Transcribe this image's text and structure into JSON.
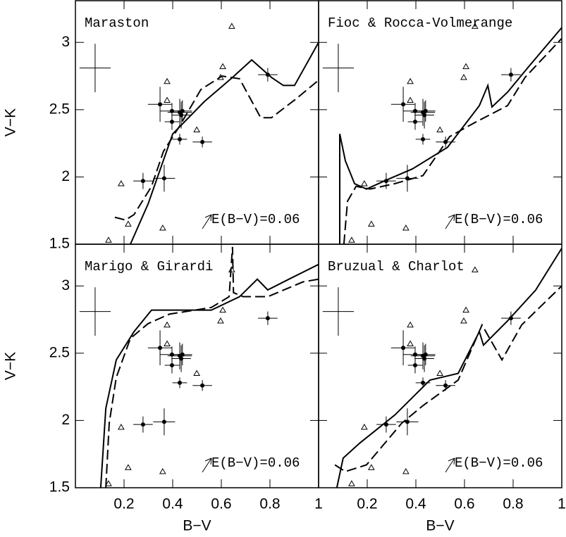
{
  "chart_data": [
    {
      "type": "scatter",
      "title": "Maraston",
      "ylabel": "V−K",
      "xlim": [
        0,
        1
      ],
      "ylim": [
        1.5,
        3.31
      ],
      "yticks": [
        1.5,
        2,
        2.5,
        3
      ],
      "annotation": "E(B−V)=0.06",
      "series": [
        {
          "style": "solid",
          "color": "#000000",
          "x": [
            0.226,
            0.299,
            0.4,
            0.53,
            0.646,
            0.725,
            0.806,
            0.855,
            0.901,
            1.0
          ],
          "values": [
            1.5,
            1.8,
            2.32,
            2.56,
            2.74,
            2.87,
            2.74,
            2.68,
            2.68,
            3.0
          ]
        },
        {
          "style": "dashed",
          "color": "#000000",
          "x": [
            0.162,
            0.206,
            0.241,
            0.313,
            0.362,
            0.429,
            0.516,
            0.603,
            0.675,
            0.762,
            0.806,
            0.907,
            0.994
          ],
          "values": [
            1.7,
            1.68,
            1.72,
            1.93,
            2.19,
            2.38,
            2.65,
            2.75,
            2.73,
            2.44,
            2.44,
            2.58,
            2.71
          ]
        },
        {
          "marker": "circle",
          "color": "#000000",
          "x": [
            0.278,
            0.365,
            0.348,
            0.397,
            0.397,
            0.429,
            0.44,
            0.435,
            0.429,
            0.522,
            0.791
          ],
          "values": [
            1.97,
            1.99,
            2.54,
            2.49,
            2.41,
            2.48,
            2.49,
            2.46,
            2.28,
            2.26,
            2.76
          ],
          "xerr": [
            0.04,
            0.045,
            0.05,
            0.05,
            0.03,
            0.05,
            0.04,
            0.04,
            0.03,
            0.04,
            0.04
          ],
          "yerr": [
            0.06,
            0.1,
            0.13,
            0.06,
            0.06,
            0.1,
            0.08,
            0.1,
            0.04,
            0.04,
            0.05
          ]
        },
        {
          "marker": "triangle",
          "color": "#000000",
          "x": [
            0.136,
            0.188,
            0.217,
            0.359,
            0.377,
            0.377,
            0.499,
            0.597,
            0.606,
            0.643
          ],
          "values": [
            1.53,
            1.95,
            1.65,
            1.62,
            2.71,
            2.57,
            2.35,
            2.74,
            2.82,
            3.12
          ]
        },
        {
          "marker": "none",
          "color": "#000000",
          "x": [
            0.081
          ],
          "values": [
            2.81
          ],
          "xerr": [
            0.064
          ],
          "yerr": [
            0.18
          ]
        }
      ]
    },
    {
      "type": "scatter",
      "title": "Fioc & Rocca-Volmerange",
      "xlim": [
        0,
        1
      ],
      "ylim": [
        1.5,
        3.31
      ],
      "annotation": "E(B−V)=0.06",
      "series": [
        {
          "style": "solid",
          "color": "#000000",
          "x": [
            0.087,
            0.087,
            0.11,
            0.148,
            0.197,
            0.27,
            0.386,
            0.53,
            0.661,
            0.696,
            0.713,
            0.777,
            0.864,
            1.0
          ],
          "values": [
            1.5,
            2.32,
            2.12,
            1.95,
            1.91,
            1.97,
            2.06,
            2.22,
            2.53,
            2.68,
            2.52,
            2.63,
            2.82,
            3.11
          ]
        },
        {
          "style": "dashed",
          "color": "#000000",
          "x": [
            0.104,
            0.119,
            0.154,
            0.212,
            0.313,
            0.429,
            0.539,
            0.638,
            0.777,
            0.849,
            1.0
          ],
          "values": [
            1.5,
            1.82,
            1.93,
            1.91,
            1.95,
            2.01,
            2.3,
            2.4,
            2.53,
            2.74,
            3.03
          ]
        },
        {
          "marker": "circle",
          "color": "#000000",
          "x": [
            0.278,
            0.365,
            0.348,
            0.397,
            0.397,
            0.429,
            0.44,
            0.435,
            0.429,
            0.522,
            0.791
          ],
          "values": [
            1.97,
            1.99,
            2.54,
            2.49,
            2.41,
            2.48,
            2.49,
            2.46,
            2.28,
            2.26,
            2.76
          ],
          "xerr": [
            0.04,
            0.045,
            0.05,
            0.05,
            0.03,
            0.05,
            0.04,
            0.04,
            0.03,
            0.04,
            0.04
          ],
          "yerr": [
            0.06,
            0.1,
            0.13,
            0.06,
            0.06,
            0.1,
            0.08,
            0.1,
            0.04,
            0.04,
            0.05
          ]
        },
        {
          "marker": "triangle",
          "color": "#000000",
          "x": [
            0.136,
            0.188,
            0.217,
            0.359,
            0.377,
            0.377,
            0.499,
            0.597,
            0.606,
            0.643
          ],
          "values": [
            1.53,
            1.95,
            1.65,
            1.62,
            2.71,
            2.57,
            2.35,
            2.74,
            2.82,
            3.12
          ]
        },
        {
          "marker": "none",
          "color": "#000000",
          "x": [
            0.081
          ],
          "values": [
            2.81
          ],
          "xerr": [
            0.064
          ],
          "yerr": [
            0.18
          ]
        }
      ]
    },
    {
      "type": "scatter",
      "title": "Marigo & Girardi",
      "xlabel": "B−V",
      "ylabel": "V−K",
      "xlim": [
        0,
        1
      ],
      "ylim": [
        1.5,
        3.31
      ],
      "xticks": [
        0.2,
        0.4,
        0.6,
        0.8,
        1
      ],
      "yticks": [
        1.5,
        2,
        2.5,
        3
      ],
      "annotation": "E(B−V)=0.06",
      "series": [
        {
          "style": "solid",
          "color": "#000000",
          "x": [
            0.104,
            0.125,
            0.168,
            0.241,
            0.313,
            0.559,
            0.675,
            0.748,
            0.791,
            0.878,
            1.0
          ],
          "values": [
            1.5,
            2.09,
            2.45,
            2.66,
            2.82,
            2.82,
            2.92,
            3.05,
            2.97,
            3.05,
            3.16
          ]
        },
        {
          "style": "dashed",
          "color": "#000000",
          "x": [
            0.125,
            0.139,
            0.168,
            0.226,
            0.299,
            0.386,
            0.559,
            0.632,
            0.646,
            0.65,
            0.69,
            0.791,
            0.936,
            1.0
          ],
          "values": [
            1.5,
            1.98,
            2.32,
            2.61,
            2.72,
            2.79,
            2.84,
            2.92,
            3.29,
            2.95,
            2.92,
            2.92,
            3.03,
            3.05
          ]
        },
        {
          "marker": "circle",
          "color": "#000000",
          "x": [
            0.278,
            0.365,
            0.348,
            0.397,
            0.397,
            0.429,
            0.44,
            0.435,
            0.429,
            0.522,
            0.791
          ],
          "values": [
            1.97,
            1.99,
            2.54,
            2.49,
            2.41,
            2.48,
            2.49,
            2.46,
            2.28,
            2.26,
            2.76
          ],
          "xerr": [
            0.04,
            0.045,
            0.05,
            0.05,
            0.03,
            0.05,
            0.04,
            0.04,
            0.03,
            0.04,
            0.04
          ],
          "yerr": [
            0.06,
            0.1,
            0.13,
            0.06,
            0.06,
            0.1,
            0.08,
            0.1,
            0.04,
            0.04,
            0.05
          ]
        },
        {
          "marker": "triangle",
          "color": "#000000",
          "x": [
            0.136,
            0.188,
            0.217,
            0.359,
            0.377,
            0.377,
            0.499,
            0.597,
            0.606,
            0.643
          ],
          "values": [
            1.53,
            1.95,
            1.65,
            1.62,
            2.71,
            2.57,
            2.35,
            2.74,
            2.82,
            3.12
          ]
        },
        {
          "marker": "none",
          "color": "#000000",
          "x": [
            0.081
          ],
          "values": [
            2.81
          ],
          "xerr": [
            0.064
          ],
          "yerr": [
            0.18
          ]
        }
      ]
    },
    {
      "type": "scatter",
      "title": "Bruzual & Charlot",
      "xlabel": "B−V",
      "xlim": [
        0,
        1
      ],
      "ylim": [
        1.5,
        3.31
      ],
      "xticks": [
        0.2,
        0.4,
        0.6,
        0.8,
        1
      ],
      "annotation": "E(B−V)=0.06",
      "series": [
        {
          "style": "solid",
          "color": "#000000",
          "x": [
            0.075,
            0.101,
            0.168,
            0.313,
            0.458,
            0.574,
            0.661,
            0.678,
            0.777,
            0.893,
            1.0
          ],
          "values": [
            1.5,
            1.72,
            1.83,
            2.04,
            2.3,
            2.35,
            2.66,
            2.56,
            2.74,
            2.97,
            3.28
          ]
        },
        {
          "style": "dashed",
          "color": "#000000",
          "x": [
            0.067,
            0.11,
            0.197,
            0.342,
            0.429,
            0.574,
            0.672,
            0.754,
            0.835,
            1.0
          ],
          "values": [
            1.67,
            1.62,
            1.67,
            1.98,
            2.11,
            2.3,
            2.71,
            2.45,
            2.71,
            3.0
          ]
        },
        {
          "marker": "circle",
          "color": "#000000",
          "x": [
            0.278,
            0.365,
            0.348,
            0.397,
            0.397,
            0.429,
            0.44,
            0.435,
            0.429,
            0.522,
            0.791
          ],
          "values": [
            1.97,
            1.99,
            2.54,
            2.49,
            2.41,
            2.48,
            2.49,
            2.46,
            2.28,
            2.26,
            2.76
          ],
          "xerr": [
            0.04,
            0.045,
            0.05,
            0.05,
            0.03,
            0.05,
            0.04,
            0.04,
            0.03,
            0.04,
            0.04
          ],
          "yerr": [
            0.06,
            0.1,
            0.13,
            0.06,
            0.06,
            0.1,
            0.08,
            0.1,
            0.04,
            0.04,
            0.05
          ]
        },
        {
          "marker": "triangle",
          "color": "#000000",
          "x": [
            0.136,
            0.188,
            0.217,
            0.359,
            0.377,
            0.377,
            0.499,
            0.597,
            0.606,
            0.643
          ],
          "values": [
            1.53,
            1.95,
            1.65,
            1.62,
            2.71,
            2.57,
            2.35,
            2.74,
            2.82,
            3.12
          ]
        },
        {
          "marker": "none",
          "color": "#000000",
          "x": [
            0.081
          ],
          "values": [
            2.81
          ],
          "xerr": [
            0.064
          ],
          "yerr": [
            0.18
          ]
        }
      ]
    }
  ]
}
